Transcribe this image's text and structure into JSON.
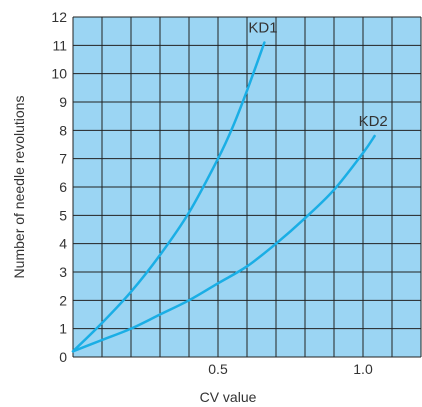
{
  "chart_data": {
    "type": "line",
    "xlabel": "CV value",
    "ylabel": "Number of needle revolutions",
    "xlim": [
      0,
      1.2
    ],
    "ylim": [
      0,
      12
    ],
    "xticks": [
      {
        "value": 0.5,
        "label": "0.5"
      },
      {
        "value": 1.0,
        "label": "1.0"
      }
    ],
    "yticks": [
      {
        "value": 0,
        "label": "0"
      },
      {
        "value": 1,
        "label": "1"
      },
      {
        "value": 2,
        "label": "2"
      },
      {
        "value": 3,
        "label": "3"
      },
      {
        "value": 4,
        "label": "4"
      },
      {
        "value": 5,
        "label": "5"
      },
      {
        "value": 6,
        "label": "6"
      },
      {
        "value": 7,
        "label": "7"
      },
      {
        "value": 8,
        "label": "8"
      },
      {
        "value": 9,
        "label": "9"
      },
      {
        "value": 10,
        "label": "10"
      },
      {
        "value": 11,
        "label": "11"
      },
      {
        "value": 12,
        "label": "12"
      }
    ],
    "grid": true,
    "series": [
      {
        "name": "KD1",
        "x": [
          0.0,
          0.1,
          0.2,
          0.3,
          0.4,
          0.5,
          0.55,
          0.6,
          0.66
        ],
        "y": [
          0.2,
          1.2,
          2.3,
          3.6,
          5.1,
          7.0,
          8.1,
          9.4,
          11.1
        ]
      },
      {
        "name": "KD2",
        "x": [
          0.0,
          0.1,
          0.2,
          0.3,
          0.4,
          0.5,
          0.6,
          0.7,
          0.8,
          0.9,
          1.0,
          1.04
        ],
        "y": [
          0.2,
          0.6,
          1.0,
          1.5,
          2.0,
          2.6,
          3.2,
          4.0,
          4.9,
          5.9,
          7.2,
          7.8
        ]
      }
    ],
    "colors": {
      "background": "#9BD5F3",
      "grid": "#222222",
      "line": "#1AAEE5",
      "text": "#333333"
    }
  }
}
